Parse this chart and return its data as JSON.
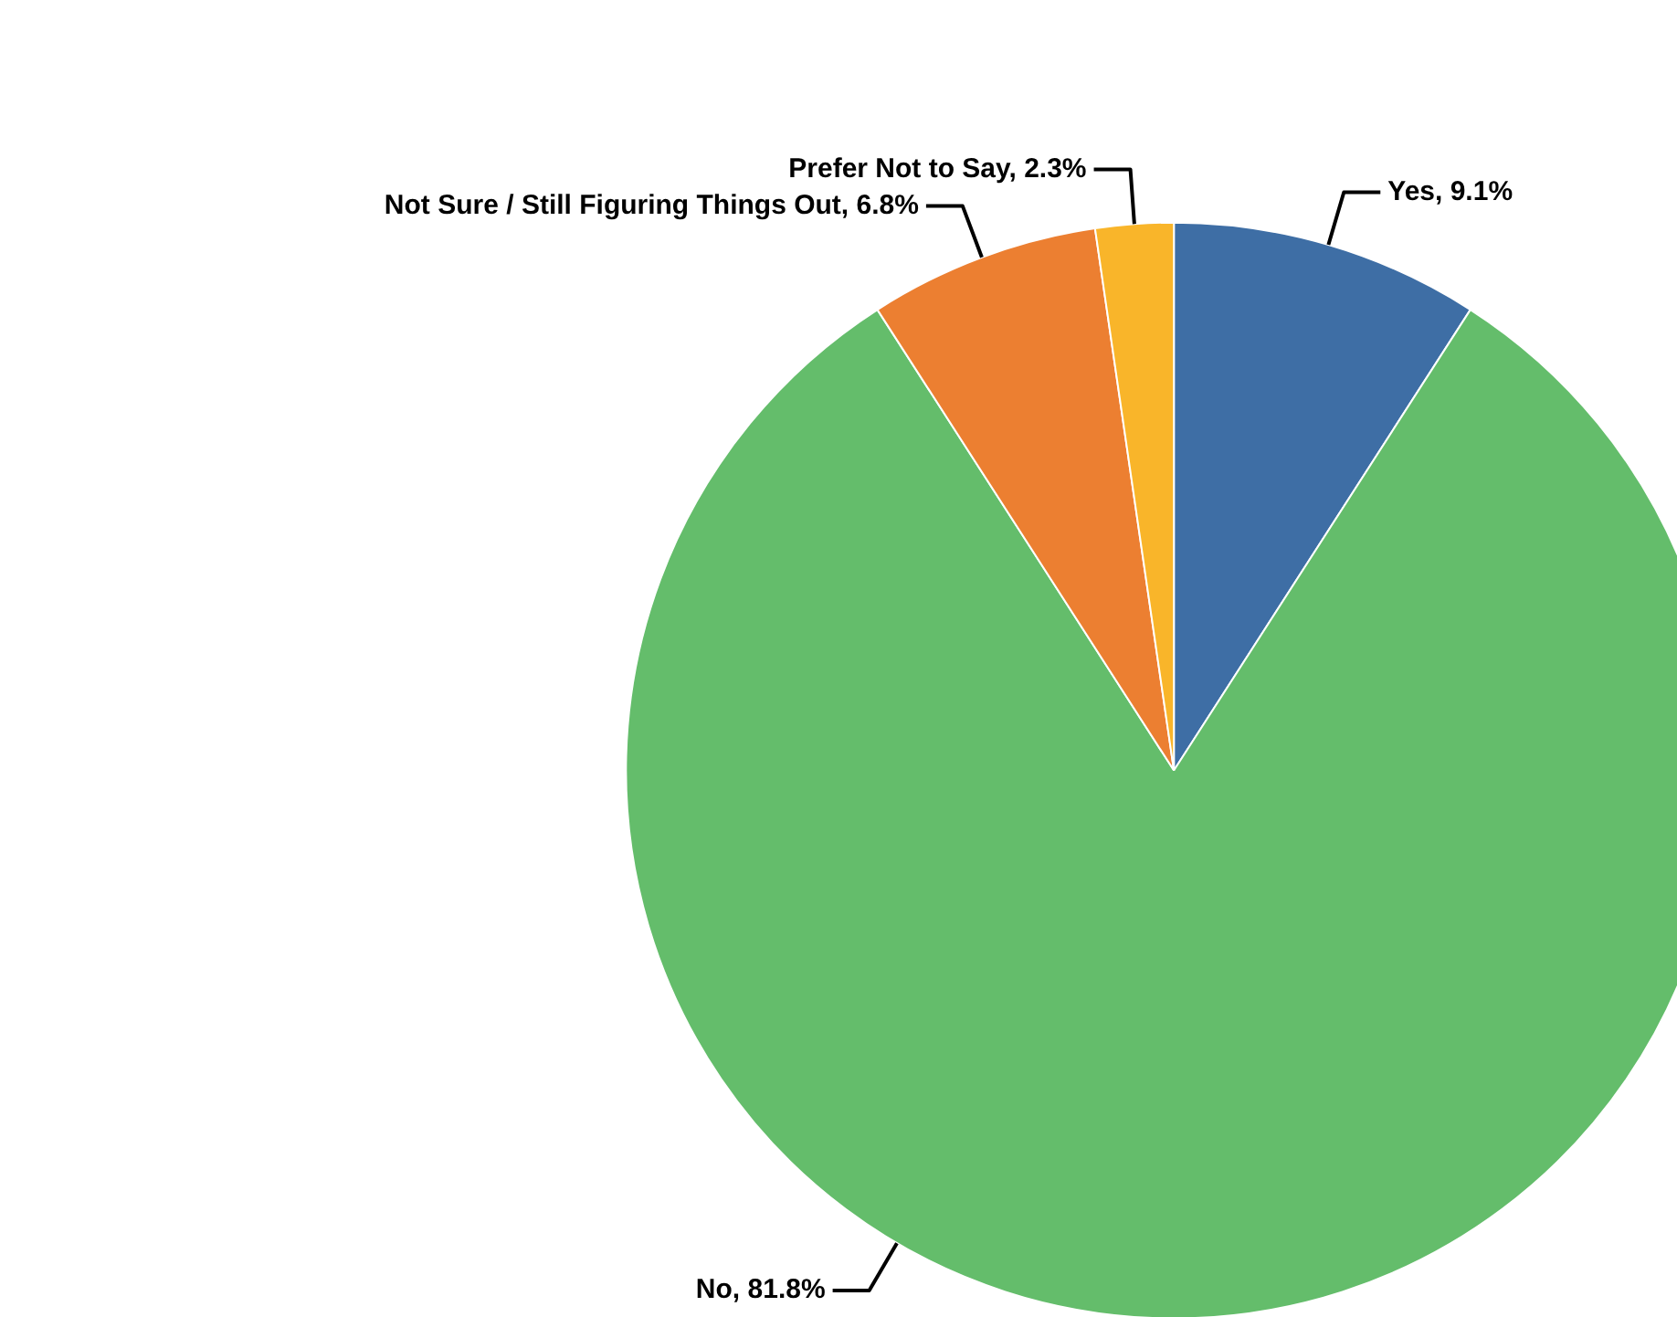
{
  "chart_data": {
    "type": "pie",
    "categories": [
      "Yes",
      "No",
      "Not Sure / Still Figuring Things Out",
      "Prefer Not to Say"
    ],
    "values": [
      9.1,
      81.8,
      6.8,
      2.3
    ],
    "value_labels": [
      "9.1%",
      "81.8%",
      "6.8%",
      "2.3%"
    ],
    "colors": [
      "#3e6ea5",
      "#64bd6b",
      "#ec7f31",
      "#f9b52a"
    ],
    "legend": false
  }
}
